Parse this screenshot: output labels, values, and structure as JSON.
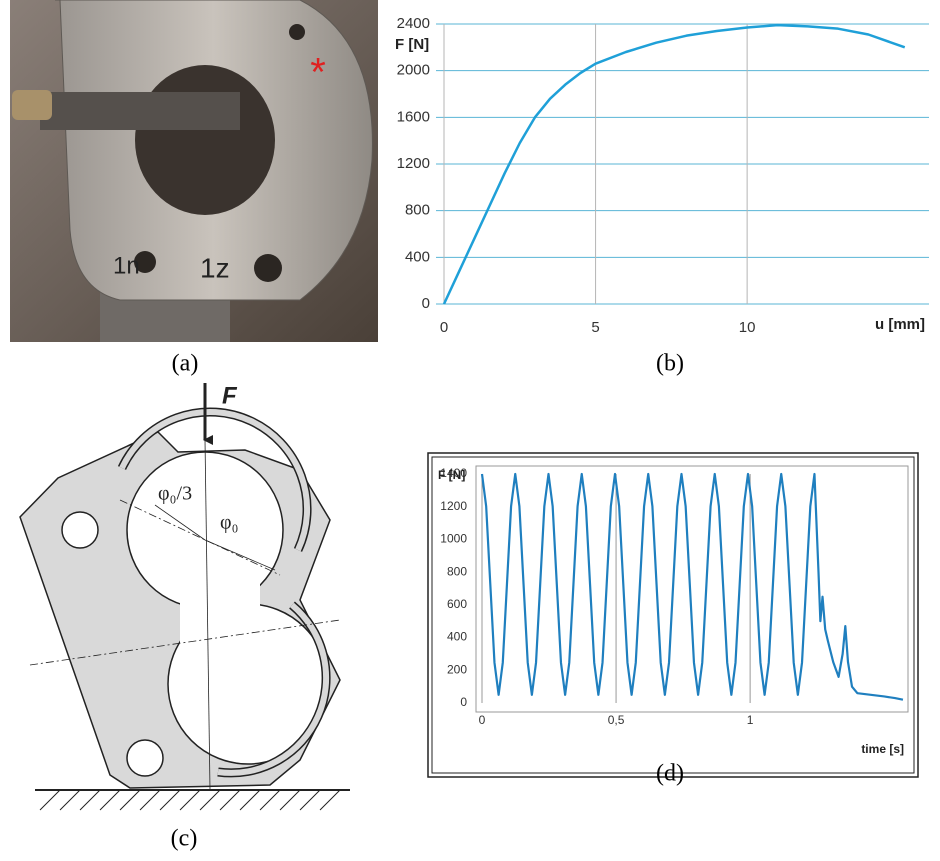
{
  "panels": {
    "a": "(a)",
    "b": "(b)",
    "c": "(c)",
    "d": "(d)"
  },
  "photo": {
    "marks": [
      "1n",
      "1z"
    ]
  },
  "diagram": {
    "force": "F",
    "angle_third": "φ₀/3",
    "angle": "φ₀"
  },
  "chart_data": [
    {
      "type": "line",
      "y_label": "F [N]",
      "x_label": "u [mm]",
      "color": "#1fa0d8",
      "grid": true,
      "xlim": [
        0,
        16
      ],
      "xticks": [
        0,
        5,
        10
      ],
      "ylim": [
        0,
        2400
      ],
      "yticks": [
        0,
        400,
        800,
        1200,
        1600,
        2000,
        2400
      ],
      "x": [
        0,
        0.5,
        1,
        1.5,
        2,
        2.5,
        3,
        3.5,
        4,
        4.5,
        5,
        6,
        7,
        8,
        9,
        10,
        11,
        12,
        13,
        14,
        15.2
      ],
      "values": [
        0,
        280,
        560,
        840,
        1120,
        1380,
        1600,
        1760,
        1880,
        1980,
        2060,
        2160,
        2240,
        2300,
        2340,
        2370,
        2390,
        2380,
        2360,
        2310,
        2200
      ]
    },
    {
      "type": "line",
      "y_label": "F [N]",
      "x_label": "time [s]",
      "color": "#1f7fbf",
      "grid": "x",
      "xlim": [
        0,
        1.6
      ],
      "xticks": [
        0,
        {
          "value": 0.5,
          "label": "0,5"
        },
        1
      ],
      "ylim": [
        0,
        1400
      ],
      "yticks": [
        0,
        200,
        400,
        600,
        800,
        1000,
        1200,
        1400
      ],
      "x": [
        0,
        0.0155,
        0.031,
        0.0465,
        0.062,
        0.0775,
        0.093,
        0.1085,
        0.124,
        0.1395,
        0.155,
        0.1705,
        0.186,
        0.2015,
        0.217,
        0.2325,
        0.248,
        0.2635,
        0.279,
        0.2945,
        0.31,
        0.3255,
        0.341,
        0.3565,
        0.372,
        0.3875,
        0.403,
        0.4185,
        0.434,
        0.4495,
        0.465,
        0.4805,
        0.496,
        0.5115,
        0.527,
        0.5425,
        0.558,
        0.5735,
        0.589,
        0.6045,
        0.62,
        0.6355,
        0.651,
        0.6665,
        0.682,
        0.6975,
        0.713,
        0.7285,
        0.744,
        0.7595,
        0.775,
        0.7905,
        0.806,
        0.8215,
        0.837,
        0.8525,
        0.868,
        0.8835,
        0.899,
        0.9145,
        0.93,
        0.9455,
        0.961,
        0.9765,
        0.992,
        1.0075,
        1.023,
        1.0385,
        1.054,
        1.0695,
        1.085,
        1.1005,
        1.116,
        1.1315,
        1.147,
        1.1625,
        1.178,
        1.1935,
        1.209,
        1.2245,
        1.24,
        1.255,
        1.262,
        1.27,
        1.28,
        1.29,
        1.31,
        1.33,
        1.345,
        1.355,
        1.365,
        1.38,
        1.4,
        1.45,
        1.5,
        1.54,
        1.57
      ],
      "values": [
        1400,
        1203,
        725,
        247,
        50,
        247,
        725,
        1203,
        1400,
        1203,
        725,
        247,
        50,
        247,
        725,
        1203,
        1400,
        1203,
        725,
        247,
        50,
        247,
        725,
        1203,
        1400,
        1203,
        725,
        247,
        50,
        247,
        725,
        1203,
        1400,
        1203,
        725,
        247,
        50,
        247,
        725,
        1203,
        1400,
        1203,
        725,
        247,
        50,
        247,
        725,
        1203,
        1400,
        1203,
        725,
        247,
        50,
        247,
        725,
        1203,
        1400,
        1203,
        725,
        247,
        50,
        247,
        725,
        1203,
        1400,
        1203,
        725,
        247,
        50,
        247,
        725,
        1203,
        1400,
        1203,
        725,
        247,
        50,
        247,
        725,
        1203,
        1400,
        800,
        500,
        650,
        450,
        380,
        250,
        160,
        300,
        470,
        250,
        100,
        60,
        50,
        40,
        30,
        20
      ]
    }
  ]
}
